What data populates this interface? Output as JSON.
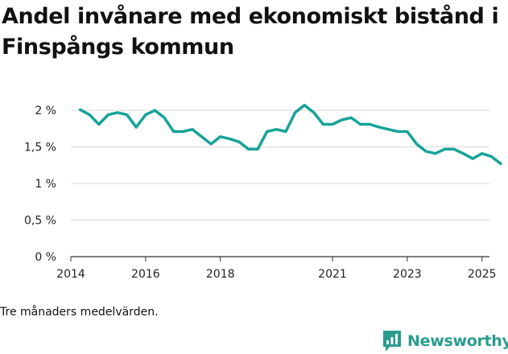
{
  "header": {
    "title": "Andel invånare med ekonomiskt bistånd i Finspångs kommun"
  },
  "chart_data": {
    "type": "line",
    "title": "Andel invånare med ekonomiskt bistånd i Finspångs kommun",
    "xlabel": "",
    "ylabel": "",
    "ylim": [
      0,
      2.2
    ],
    "xlim": [
      2014,
      2025.2
    ],
    "yticks": [
      {
        "value": 0,
        "label": "0 %"
      },
      {
        "value": 0.5,
        "label": "0,5 %"
      },
      {
        "value": 1,
        "label": "1 %"
      },
      {
        "value": 1.5,
        "label": "1,5 %"
      },
      {
        "value": 2,
        "label": "2 %"
      }
    ],
    "xticks": [
      {
        "value": 2014,
        "label": "2014"
      },
      {
        "value": 2016,
        "label": "2016"
      },
      {
        "value": 2018,
        "label": "2018"
      },
      {
        "value": 2021,
        "label": "2021"
      },
      {
        "value": 2023,
        "label": "2023"
      },
      {
        "value": 2025,
        "label": "2025"
      }
    ],
    "grid": true,
    "color": "#17a398",
    "series": [
      {
        "name": "Andel invånare med ekonomiskt bistånd",
        "x": [
          2014.25,
          2014.5,
          2014.75,
          2015.0,
          2015.25,
          2015.5,
          2015.75,
          2016.0,
          2016.25,
          2016.5,
          2016.75,
          2017.0,
          2017.25,
          2017.5,
          2017.75,
          2018.0,
          2018.25,
          2018.5,
          2018.75,
          2019.0,
          2019.25,
          2019.5,
          2019.75,
          2020.0,
          2020.25,
          2020.5,
          2020.75,
          2021.0,
          2021.25,
          2021.5,
          2021.75,
          2022.0,
          2022.25,
          2022.5,
          2022.75,
          2023.0,
          2023.25,
          2023.5,
          2023.75,
          2024.0,
          2024.25,
          2024.5,
          2024.75,
          2025.0,
          2025.25,
          2025.5
        ],
        "values": [
          2.01,
          1.94,
          1.81,
          1.94,
          1.97,
          1.94,
          1.77,
          1.94,
          2.0,
          1.9,
          1.71,
          1.71,
          1.74,
          1.64,
          1.54,
          1.64,
          1.61,
          1.57,
          1.47,
          1.47,
          1.71,
          1.74,
          1.71,
          1.97,
          2.07,
          1.97,
          1.81,
          1.81,
          1.87,
          1.9,
          1.81,
          1.81,
          1.77,
          1.74,
          1.71,
          1.71,
          1.54,
          1.44,
          1.41,
          1.47,
          1.47,
          1.41,
          1.34,
          1.41,
          1.37,
          1.27
        ]
      }
    ]
  },
  "footnote": "Tre månaders medelvärden.",
  "brand": {
    "name": "Newsworthy",
    "color": "#2a9d8f"
  }
}
